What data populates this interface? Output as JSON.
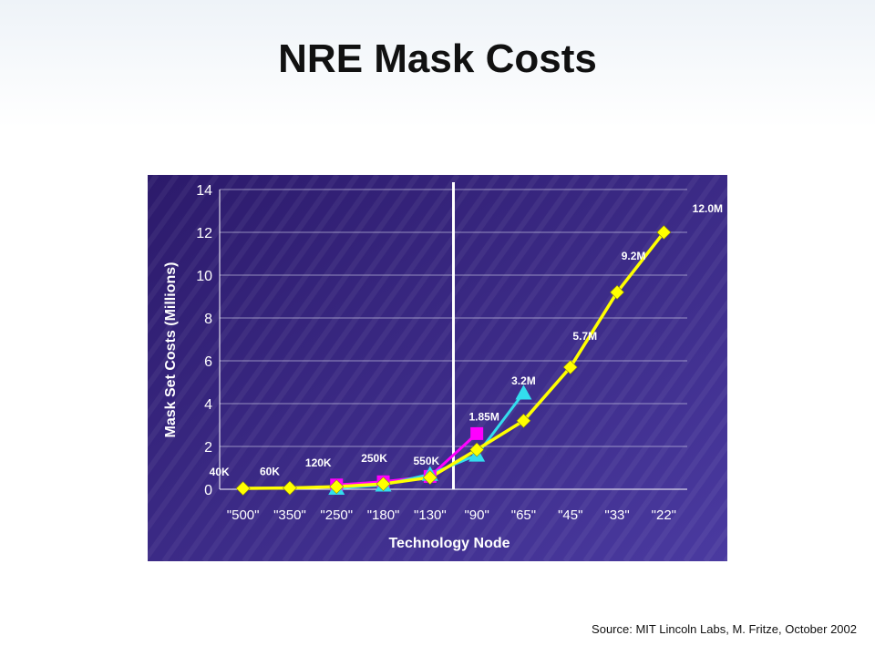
{
  "slide": {
    "title": "NRE Mask Costs",
    "source": "Source: MIT Lincoln Labs, M. Fritze, October 2002"
  },
  "colors": {
    "panel_top": "#2c1a6b",
    "panel_bottom": "#4a3aa0",
    "yellow": "#ffff00",
    "magenta": "#ff00ff",
    "cyan": "#33ddee",
    "divider": "#ffffff"
  },
  "chart_data": {
    "type": "line",
    "xlabel": "Technology Node",
    "ylabel": "Mask Set Costs (Millions)",
    "categories": [
      "\"500\"",
      "\"350\"",
      "\"250\"",
      "\"180\"",
      "\"130\"",
      "\"90\"",
      "\"65\"",
      "\"45\"",
      "\"33\"",
      "\"22\""
    ],
    "ylim": [
      0,
      14
    ],
    "yticks": [
      0,
      2,
      4,
      6,
      8,
      10,
      12,
      14
    ],
    "divider_after_category": "\"130\"",
    "series": [
      {
        "marker": "diamond",
        "color": "#ffff00",
        "values": [
          0.04,
          0.06,
          0.12,
          0.25,
          0.55,
          1.85,
          3.2,
          5.7,
          9.2,
          12.0
        ]
      },
      {
        "marker": "square",
        "color": "#ff00ff",
        "values": [
          null,
          null,
          0.2,
          0.35,
          0.6,
          2.6,
          null,
          null,
          null,
          null
        ]
      },
      {
        "marker": "triangle",
        "color": "#33ddee",
        "values": [
          null,
          null,
          0.05,
          0.2,
          0.7,
          1.6,
          4.5,
          null,
          null,
          null
        ]
      }
    ],
    "data_labels": [
      {
        "category_index": 0,
        "text": "40K"
      },
      {
        "category_index": 1,
        "text": "60K"
      },
      {
        "category_index": 2,
        "text": "120K"
      },
      {
        "category_index": 3,
        "text": "250K"
      },
      {
        "category_index": 4,
        "text": "550K"
      },
      {
        "category_index": 5,
        "text": "1.85M"
      },
      {
        "category_index": 6,
        "text": "3.2M"
      },
      {
        "category_index": 7,
        "text": "5.7M"
      },
      {
        "category_index": 8,
        "text": "9.2M"
      },
      {
        "category_index": 9,
        "text": "12.0M"
      }
    ]
  }
}
